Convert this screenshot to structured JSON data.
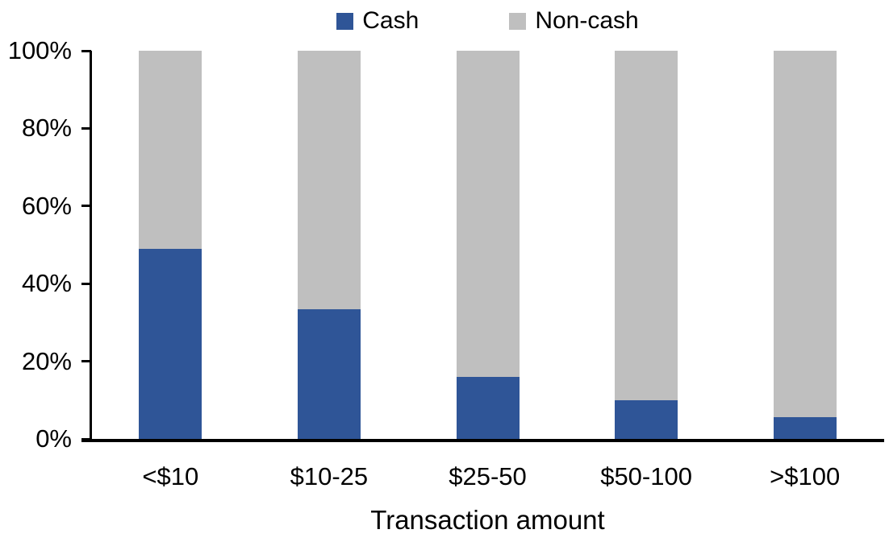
{
  "chart_data": {
    "type": "bar",
    "variant": "stacked-100-percent",
    "title": "",
    "xlabel": "Transaction amount",
    "ylabel": "",
    "categories": [
      "<$10",
      "$10-25",
      "$25-50",
      "$50-100",
      ">$100"
    ],
    "series": [
      {
        "name": "Cash",
        "color": "#2F5597",
        "values": [
          49,
          33.5,
          16,
          10,
          5.5
        ]
      },
      {
        "name": "Non-cash",
        "color": "#BFBFBF",
        "values": [
          51,
          66.5,
          84,
          90,
          94.5
        ]
      }
    ],
    "y_ticks": [
      "0%",
      "20%",
      "40%",
      "60%",
      "80%",
      "100%"
    ],
    "ylim": [
      0,
      100
    ],
    "legend_position": "top-center",
    "grid": false,
    "axis_color": "#000000",
    "background_color": "#FFFFFF"
  }
}
